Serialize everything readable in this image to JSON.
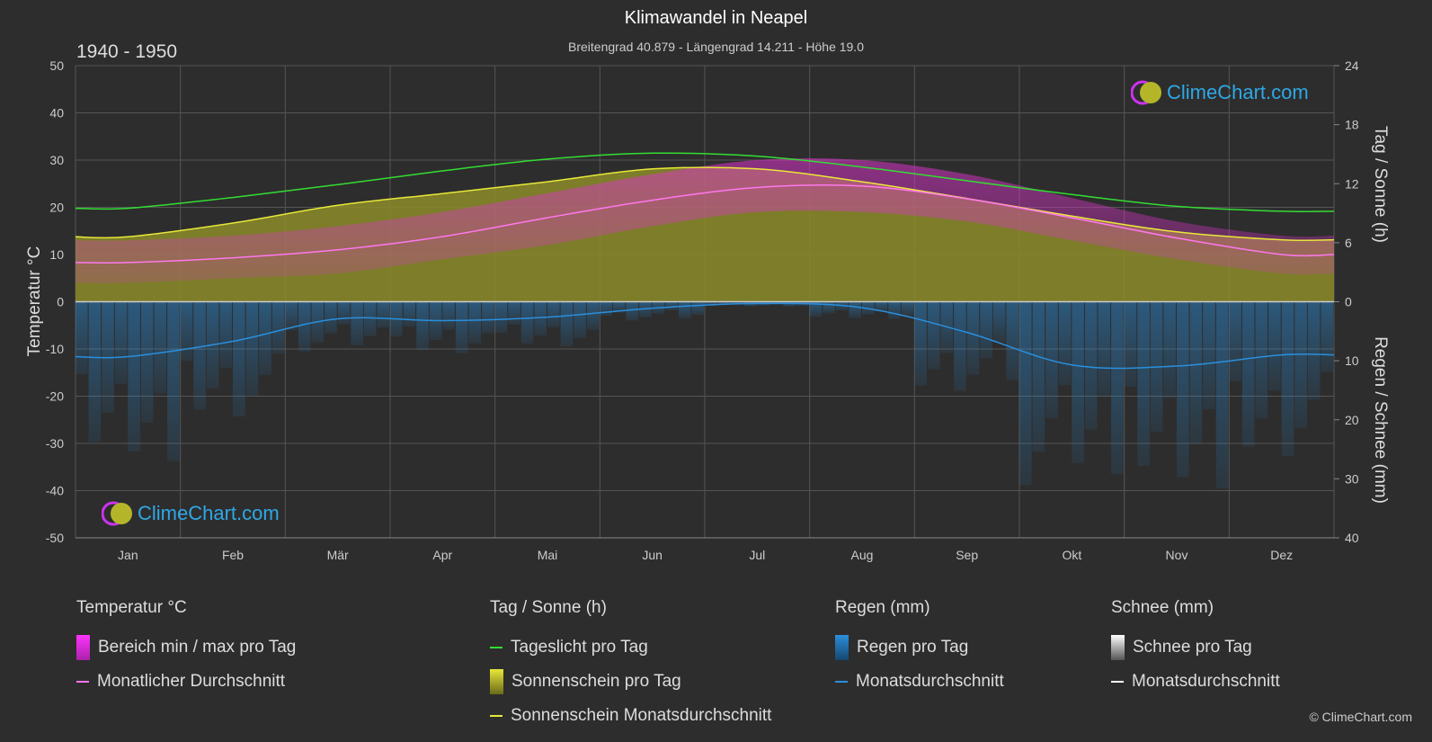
{
  "header": {
    "title": "Klimawandel in Neapel",
    "subtitle": "Breitengrad 40.879 - Längengrad 14.211 - Höhe 19.0",
    "period": "1940 - 1950"
  },
  "brand": {
    "name": "ClimeChart.com",
    "copyright": "© ClimeChart.com"
  },
  "colors": {
    "background": "#2d2d2d",
    "daylight": "#33dd33",
    "sunshine": "#e8e83a",
    "sunshine_fill": "#8c8c2a",
    "temp_range": "#dd33cc",
    "temp_avg": "#ff77ee",
    "rain": "#2a8fdd",
    "snow": "#ffffff"
  },
  "legend": {
    "temperature": {
      "title": "Temperatur °C",
      "items": [
        "Bereich min / max pro Tag",
        "Monatlicher Durchschnitt"
      ]
    },
    "sun": {
      "title": "Tag / Sonne (h)",
      "items": [
        "Tageslicht pro Tag",
        "Sonnenschein pro Tag",
        "Sonnenschein Monatsdurchschnitt"
      ]
    },
    "rain": {
      "title": "Regen (mm)",
      "items": [
        "Regen pro Tag",
        "Monatsdurchschnitt"
      ]
    },
    "snow": {
      "title": "Schnee (mm)",
      "items": [
        "Schnee pro Tag",
        "Monatsdurchschnitt"
      ]
    }
  },
  "chart_data": {
    "type": "line",
    "categories": [
      "Jan",
      "Feb",
      "Mär",
      "Apr",
      "Mai",
      "Jun",
      "Jul",
      "Aug",
      "Sep",
      "Okt",
      "Nov",
      "Dez"
    ],
    "y_left": {
      "label": "Temperatur °C",
      "range": [
        -50,
        50
      ],
      "ticks": [
        50,
        40,
        30,
        20,
        10,
        0,
        -10,
        -20,
        -30,
        -40,
        -50
      ]
    },
    "y_right_top": {
      "label": "Tag / Sonne (h)",
      "range": [
        0,
        24
      ],
      "ticks": [
        24,
        18,
        12,
        6,
        0
      ]
    },
    "y_right_bottom": {
      "label": "Regen / Schnee (mm)",
      "range": [
        0,
        40
      ],
      "ticks": [
        0,
        10,
        20,
        30,
        40
      ]
    },
    "grid": true,
    "series": [
      {
        "name": "Tageslicht pro Tag",
        "unit": "h",
        "values": [
          9.5,
          10.6,
          11.9,
          13.3,
          14.5,
          15.1,
          14.8,
          13.7,
          12.3,
          10.9,
          9.7,
          9.2
        ]
      },
      {
        "name": "Sonnenschein Monatsdurchschnitt",
        "unit": "h",
        "values": [
          6.6,
          8.0,
          9.8,
          11.0,
          12.2,
          13.5,
          13.5,
          12.2,
          10.5,
          8.7,
          7.1,
          6.3
        ]
      },
      {
        "name": "Monatlicher Durchschnitt",
        "unit": "°C",
        "values": [
          8.3,
          9.3,
          11.0,
          13.8,
          17.8,
          21.5,
          24.2,
          24.5,
          21.8,
          17.8,
          13.5,
          10.0
        ]
      },
      {
        "name": "Temperatur max",
        "unit": "°C",
        "values": [
          13,
          14,
          16,
          19,
          23,
          27,
          30,
          30,
          27,
          22,
          17,
          14
        ]
      },
      {
        "name": "Temperatur min",
        "unit": "°C",
        "values": [
          4,
          5,
          6,
          9,
          12,
          16,
          19,
          19,
          17,
          13,
          9,
          6
        ]
      },
      {
        "name": "Regen Monatsdurchschnitt",
        "unit": "mm",
        "values": [
          9.3,
          6.7,
          2.9,
          3.2,
          2.6,
          1.1,
          0.3,
          1.0,
          5.2,
          10.7,
          10.9,
          9.0
        ]
      }
    ]
  }
}
